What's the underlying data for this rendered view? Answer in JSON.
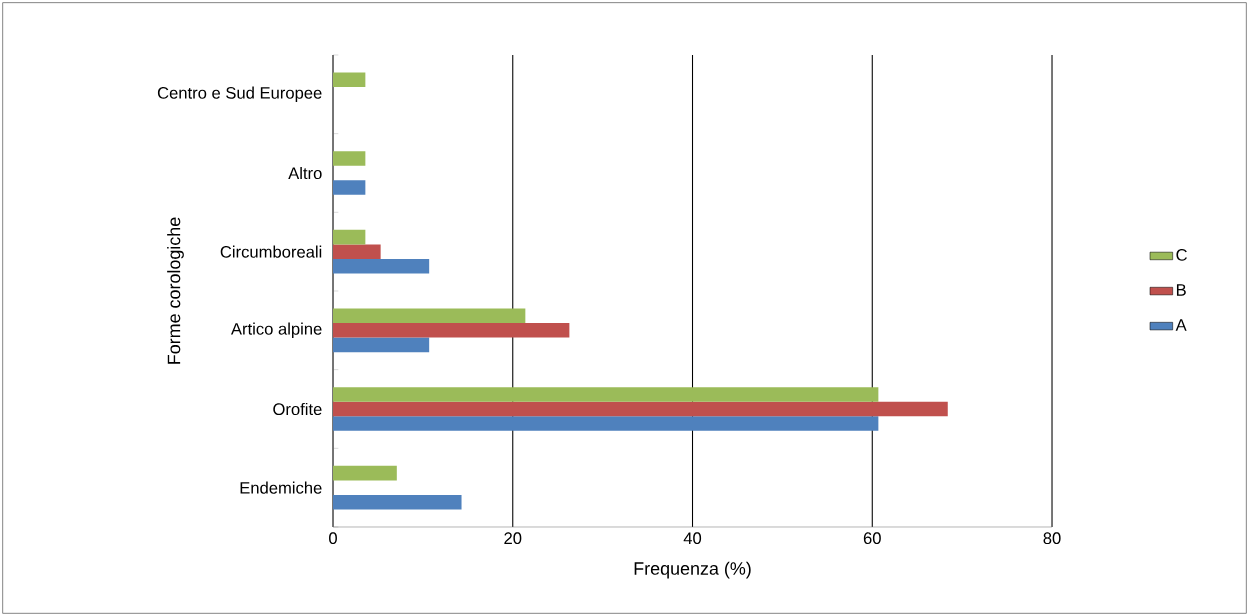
{
  "chart_data": {
    "type": "bar",
    "orientation": "horizontal",
    "xlabel": "Frequenza (%)",
    "ylabel": "Forme corologiche",
    "categories": [
      "Centro e Sud Europee",
      "Altro",
      "Circumboreali",
      "Artico alpine",
      "Orofite",
      "Endemiche"
    ],
    "series": [
      {
        "name": "A",
        "color": "#4f81bd",
        "values": [
          0,
          3.6,
          10.7,
          10.7,
          60.7,
          14.3
        ]
      },
      {
        "name": "B",
        "color": "#c0504d",
        "values": [
          0,
          0,
          5.3,
          26.3,
          68.4,
          0
        ]
      },
      {
        "name": "C",
        "color": "#9bbb59",
        "values": [
          3.6,
          3.6,
          3.6,
          21.4,
          60.7,
          7.1
        ]
      }
    ],
    "xlim": [
      0,
      80
    ],
    "xticks": [
      0,
      20,
      40,
      60,
      80
    ],
    "grid": "x",
    "legend": "right"
  }
}
